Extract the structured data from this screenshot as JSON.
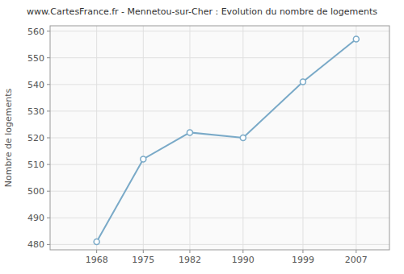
{
  "chart_data": {
    "type": "line",
    "title": "www.CartesFrance.fr - Mennetou-sur-Cher : Evolution du nombre de logements",
    "ylabel": "Nombre de logements",
    "x": [
      1968,
      1975,
      1982,
      1990,
      1999,
      2007
    ],
    "values": [
      481,
      512,
      522,
      520,
      541,
      557
    ],
    "color": "#7aaac8",
    "marker": "circle",
    "xlim": [
      1961,
      2012
    ],
    "xticks": [
      1968,
      1975,
      1982,
      1990,
      1999,
      2007
    ],
    "ylim": [
      478,
      562
    ],
    "yticks": [
      480,
      490,
      500,
      510,
      520,
      530,
      540,
      550,
      560
    ],
    "grid": true
  }
}
